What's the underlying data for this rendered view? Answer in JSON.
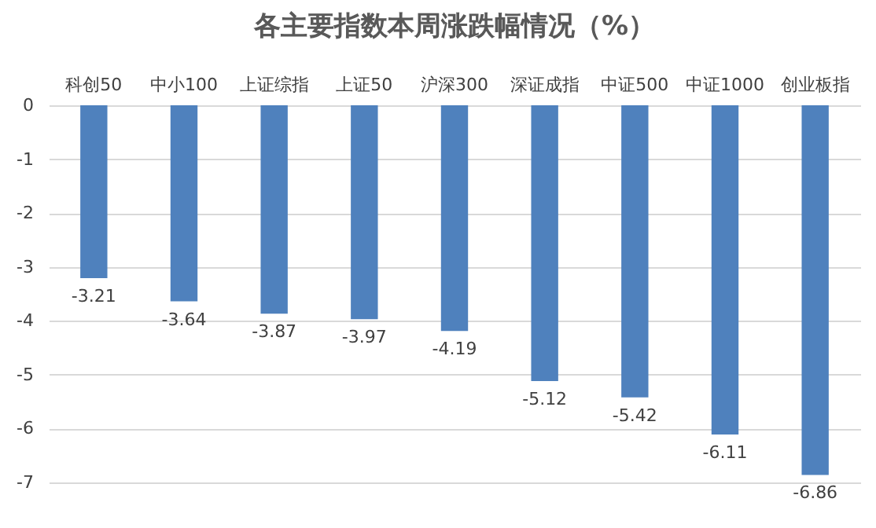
{
  "chart_data": {
    "type": "bar",
    "title": "各主要指数本周涨跌幅情况（%）",
    "categories": [
      "科创50",
      "中小100",
      "上证综指",
      "上证50",
      "沪深300",
      "深证成指",
      "中证500",
      "中证1000",
      "创业板指"
    ],
    "values": [
      -3.21,
      -3.64,
      -3.87,
      -3.97,
      -4.19,
      -5.12,
      -5.42,
      -6.11,
      -6.86
    ],
    "color": "#4f81bd",
    "data_labels": true,
    "ylim": [
      -7,
      0
    ],
    "yticks": [
      0,
      -1,
      -2,
      -3,
      -4,
      -5,
      -6,
      -7
    ],
    "grid": "y"
  }
}
